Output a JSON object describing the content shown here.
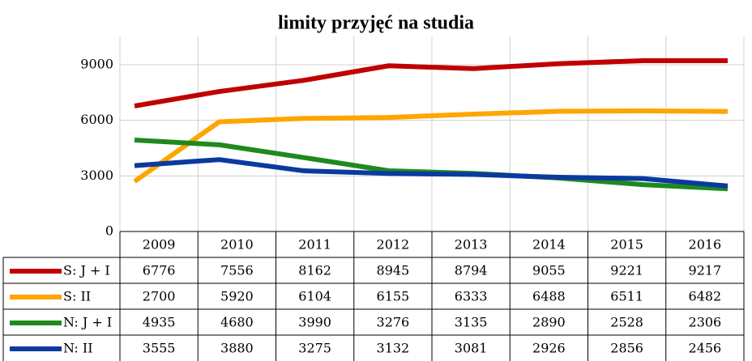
{
  "chart_data": {
    "type": "line",
    "title": "limity przyjęć na studia",
    "categories": [
      "2009",
      "2010",
      "2011",
      "2012",
      "2013",
      "2014",
      "2015",
      "2016"
    ],
    "series": [
      {
        "name": "S: J + I",
        "color": "#c00000",
        "values": [
          6776,
          7556,
          8162,
          8945,
          8794,
          9055,
          9221,
          9217
        ]
      },
      {
        "name": "S: II",
        "color": "#ffa500",
        "values": [
          2700,
          5920,
          6104,
          6155,
          6333,
          6488,
          6511,
          6482
        ]
      },
      {
        "name": "N: J + I",
        "color": "#1e8a1e",
        "values": [
          4935,
          4680,
          3990,
          3276,
          3135,
          2890,
          2528,
          2306
        ]
      },
      {
        "name": "N: II",
        "color": "#0a3aa0",
        "values": [
          3555,
          3880,
          3275,
          3132,
          3081,
          2926,
          2856,
          2456
        ]
      }
    ],
    "ylim": [
      0,
      9000
    ],
    "yticks": [
      0,
      3000,
      6000,
      9000
    ],
    "grid": true
  }
}
